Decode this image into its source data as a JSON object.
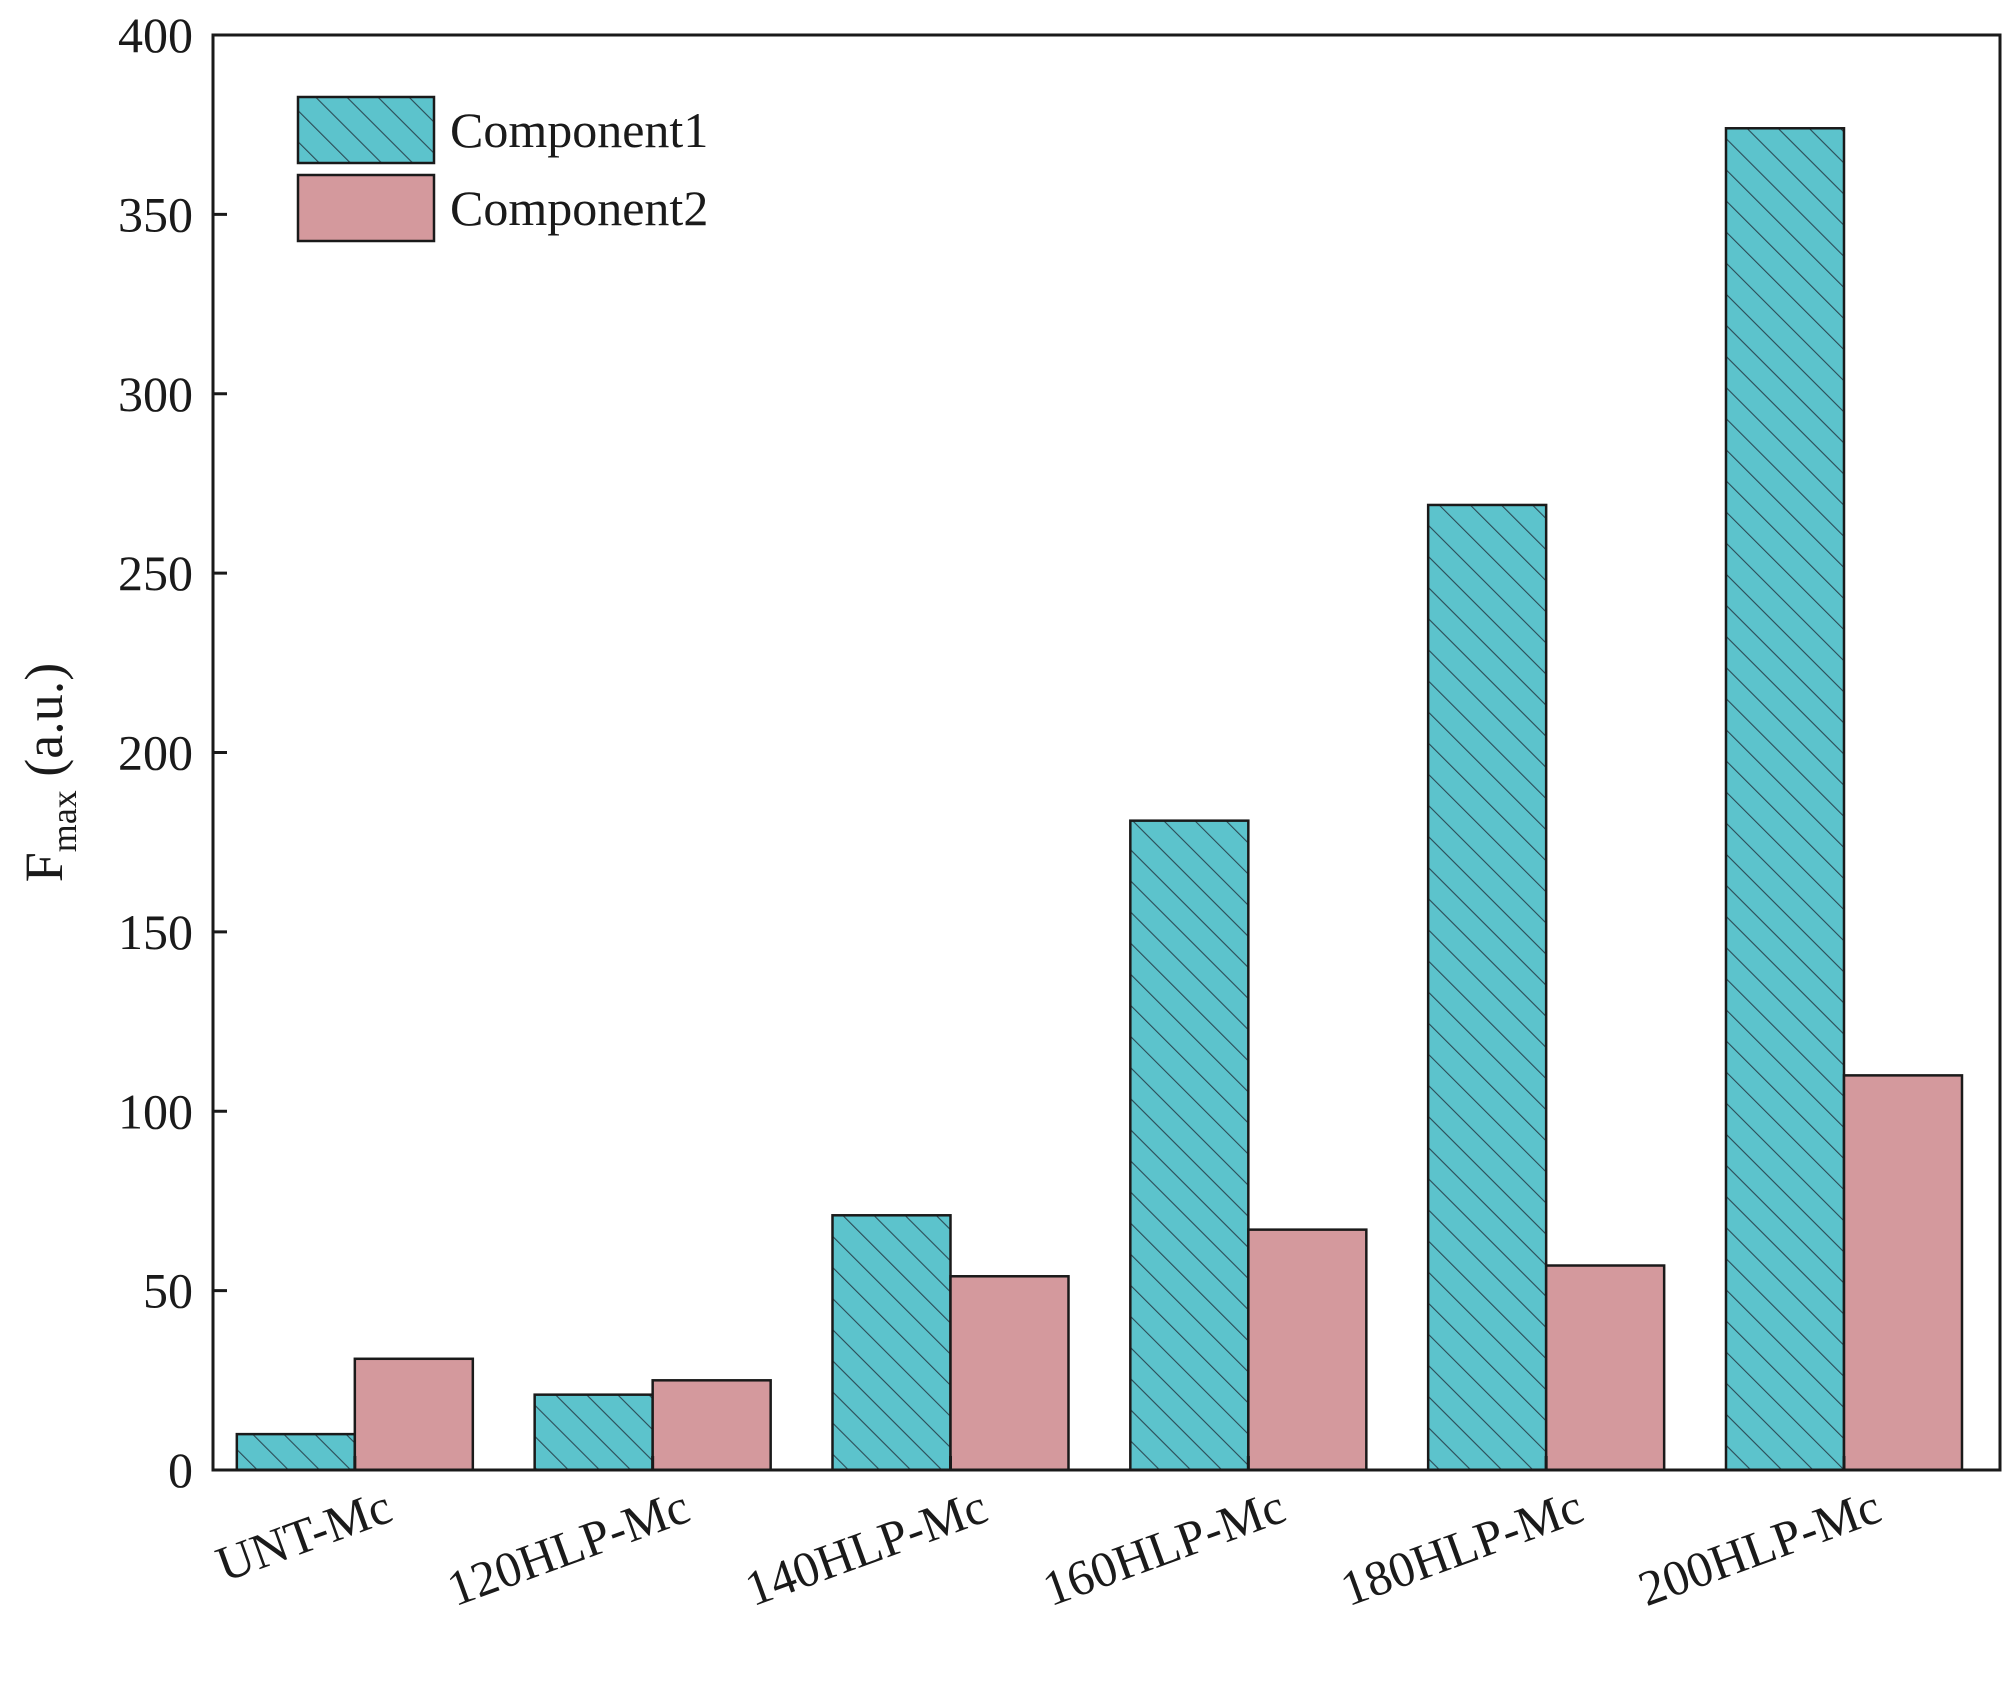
{
  "chart_data": {
    "type": "bar",
    "categories": [
      "UNT-Mc",
      "120HLP-Mc",
      "140HLP-Mc",
      "160HLP-Mc",
      "180HLP-Mc",
      "200HLP-Mc"
    ],
    "series": [
      {
        "name": "Component1",
        "values": [
          10,
          21,
          71,
          181,
          269,
          374
        ],
        "color": "#5cc3cc",
        "pattern": "hatched"
      },
      {
        "name": "Component2",
        "values": [
          31,
          25,
          54,
          67,
          57,
          110
        ],
        "color": "#d4999d",
        "pattern": "solid"
      }
    ],
    "title": "",
    "xlabel": "",
    "ylabel": {
      "main": "F",
      "subscript": "max",
      "suffix": " (a.u.)"
    },
    "ylim": [
      0,
      400
    ],
    "yticks": [
      0,
      50,
      100,
      150,
      200,
      250,
      300,
      350,
      400
    ],
    "grid": false,
    "legend_position": "top-left"
  }
}
